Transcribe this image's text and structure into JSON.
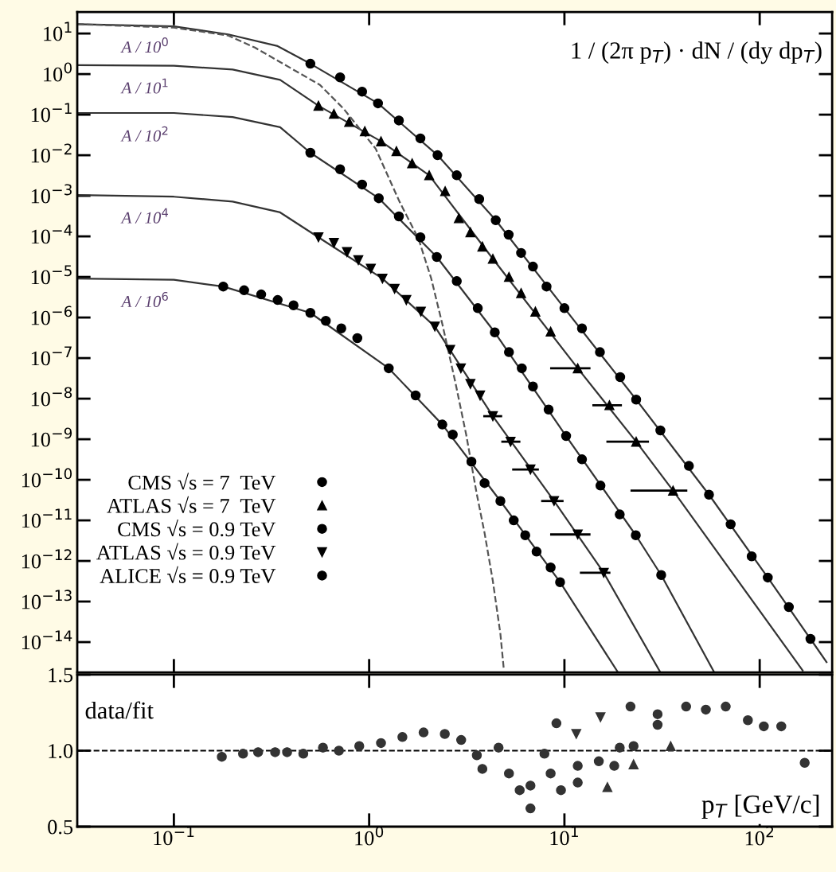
{
  "chart_data": [
    {
      "type": "scatter",
      "log": "xy",
      "xlim": [
        0.032,
        235
      ],
      "ylim": [
        1.8e-15,
        34
      ],
      "xticks": [
        {
          "value": 0.1,
          "label": null
        },
        {
          "value": 1,
          "label": null
        },
        {
          "value": 10,
          "label": null
        },
        {
          "value": 100,
          "label": null
        }
      ],
      "yticks": [
        {
          "value": 10,
          "label": "10$^{1}$"
        },
        {
          "value": 1,
          "label": "10$^{0}$"
        },
        {
          "value": 0.1,
          "label": "10$^{−1}$"
        },
        {
          "value": 0.01,
          "label": "10$^{−2}$"
        },
        {
          "value": 0.001,
          "label": "10$^{−3}$"
        },
        {
          "value": 0.0001,
          "label": "10$^{−4}$"
        },
        {
          "value": 1e-05,
          "label": "10$^{−5}$"
        },
        {
          "value": 1e-06,
          "label": "10$^{−6}$"
        },
        {
          "value": 1e-07,
          "label": "10$^{−7}$"
        },
        {
          "value": 1e-08,
          "label": "10$^{−8}$"
        },
        {
          "value": 1e-09,
          "label": "10$^{−9}$"
        },
        {
          "value": 1e-10,
          "label": "10$^{−10}$"
        },
        {
          "value": 1e-11,
          "label": "10$^{−11}$"
        },
        {
          "value": 1e-12,
          "label": "10$^{−12}$"
        },
        {
          "value": 1e-13,
          "label": "10$^{−13}$"
        },
        {
          "value": 1e-14,
          "label": "10$^{−14}$"
        }
      ],
      "tick_labels": "y",
      "grid": false,
      "legend": "bottom left",
      "annotations": [
        "A / 10$^{0}$",
        "A / 10$^{1}$",
        "A / 10$^{2}$",
        "A / 10$^{4}$",
        "A / 10$^{6}$",
        "1 / (2π p$_{T}$) · dN / (dy dp$_{T}$)"
      ],
      "series": [
        {
          "name": "CMS √s = 7  TeV",
          "marker": "circle",
          "color": "#000000",
          "x": [
            0.5,
            0.71,
            0.92,
            1.11,
            1.42,
            1.83,
            2.24,
            2.81,
            3.66,
            4.45,
            5.18,
            6.0,
            6.9,
            8.1,
            10,
            12.3,
            15.2,
            19.3,
            23.3,
            31,
            43.4,
            55,
            71,
            91,
            110,
            141,
            182
          ],
          "values": [
            1.8,
            0.83,
            0.37,
            0.19,
            0.072,
            0.026,
            0.01,
            0.0032,
            0.00083,
            0.00025,
            0.00011,
            3.9e-05,
            1.8e-05,
            5.8e-06,
            1.7e-06,
            5.4e-07,
            1.4e-07,
            3.4e-08,
            9.5e-09,
            1.65e-09,
            2.2e-10,
            4.3e-11,
            8e-12,
            1.3e-12,
            3.9e-13,
            7.3e-14,
            1.2e-14
          ]
        },
        {
          "name": "ATLAS √s = 7  TeV",
          "marker": "triangle",
          "color": "#000000",
          "x": [
            0.55,
            0.66,
            0.79,
            0.95,
            1.15,
            1.38,
            1.66,
            2.03,
            2.45,
            2.88,
            3.3,
            3.8,
            4.3,
            5.2,
            6.0,
            7.1,
            8.5,
            11.7,
            17,
            23.3,
            36
          ],
          "values": [
            0.166,
            0.105,
            0.066,
            0.039,
            0.022,
            0.0126,
            0.0063,
            0.0032,
            0.0013,
            0.00028,
            0.000126,
            5.6e-05,
            2.8e-05,
            1e-05,
            4e-06,
            1.4e-06,
            4.5e-07,
            5.6e-08,
            6.9e-09,
            8.7e-10,
            5.4e-11
          ],
          "xerrors": [
            null,
            null,
            null,
            null,
            null,
            null,
            null,
            null,
            null,
            null,
            null,
            null,
            null,
            null,
            null,
            null,
            null,
            [
              8.45,
              13.6
            ],
            [
              13.9,
              19.7
            ],
            [
              16.4,
              27.1
            ],
            [
              21.8,
              42.6
            ]
          ]
        },
        {
          "name": "CMS √s = 0.9 TeV",
          "marker": "circle",
          "color": "#000000",
          "x": [
            0.5,
            0.71,
            0.92,
            1.12,
            1.42,
            1.83,
            2.22,
            2.81,
            3.6,
            4.4,
            5.2,
            6.05,
            6.9,
            8.3,
            10.2,
            12.3,
            15.3,
            19.2,
            23.2,
            31.3
          ],
          "values": [
            0.0115,
            0.0045,
            0.0019,
            0.00087,
            0.00031,
            9.5e-05,
            3.1e-05,
            7.9e-06,
            1.7e-06,
            4.3e-07,
            1.4e-07,
            5.6e-08,
            2e-08,
            5.4e-09,
            1.2e-09,
            3.2e-10,
            7.2e-11,
            1.4e-11,
            4.3e-12,
            4.5e-13
          ]
        },
        {
          "name": "ATLAS √s = 0.9 TeV",
          "marker": "triangle_down",
          "color": "#000000",
          "x": [
            0.55,
            0.66,
            0.77,
            0.88,
            1.02,
            1.17,
            1.35,
            1.55,
            1.84,
            2.17,
            2.6,
            2.95,
            3.3,
            3.7,
            4.3,
            5.3,
            6.7,
            8.85,
            11.7,
            15.9
          ],
          "values": [
            9.5e-05,
            6.9e-05,
            4.1e-05,
            2.6e-05,
            1.6e-05,
            9.1e-06,
            5.1e-06,
            2.7e-06,
            1.4e-06,
            6e-07,
            1.6e-07,
            5.6e-08,
            2.3e-08,
            1.2e-08,
            3.7e-09,
            8.7e-10,
            1.8e-10,
            3e-11,
            4.5e-12,
            5.1e-13
          ],
          "xerrors": [
            null,
            null,
            null,
            null,
            null,
            null,
            null,
            null,
            null,
            null,
            null,
            null,
            null,
            null,
            [
              3.84,
              4.8
            ],
            [
              4.75,
              5.95
            ],
            [
              5.4,
              7.4
            ],
            [
              7.6,
              9.9
            ],
            [
              8.45,
              13.6
            ],
            [
              12.0,
              17.2
            ]
          ]
        },
        {
          "name": "ALICE √s = 0.9 TeV",
          "marker": "circle",
          "color": "#000000",
          "x": [
            0.179,
            0.229,
            0.28,
            0.34,
            0.41,
            0.5,
            0.6,
            0.72,
            0.87,
            1.26,
            1.73,
            2.37,
            2.68,
            3.34,
            3.9,
            4.7,
            5.5,
            6.3,
            7.2,
            8.5,
            9.5
          ],
          "values": [
            5.8e-06,
            4.7e-06,
            3.7e-06,
            2.7e-06,
            2e-06,
            1.3e-06,
            8.3e-07,
            5.4e-07,
            3.1e-07,
            5.6e-08,
            1.2e-08,
            2.3e-09,
            1.3e-09,
            2.8e-10,
            8.3e-11,
            3e-11,
            1e-11,
            4.3e-12,
            1.7e-12,
            6.9e-13,
            3e-13
          ]
        },
        {
          "type": "line",
          "color": "#333333",
          "x": [
            0.032,
            0.1,
            0.19,
            0.34,
            0.5,
            1.11,
            2.24,
            4.45,
            10,
            23.3,
            55,
            110,
            182,
            220
          ],
          "values": [
            17,
            15,
            9.5,
            4.9,
            1.8,
            0.19,
            0.01,
            0.00025,
            1.7e-06,
            9.5e-09,
            4.3e-11,
            3.9e-13,
            1.2e-14,
            3.2e-15
          ]
        },
        {
          "type": "line",
          "color": "#333333",
          "x": [
            0.032,
            0.1,
            0.2,
            0.35,
            0.55,
            1.15,
            2.03,
            4.3,
            11.7,
            23.3,
            36,
            166
          ],
          "values": [
            1.66,
            1.6,
            1.3,
            0.72,
            0.166,
            0.022,
            0.0032,
            2.8e-05,
            5.6e-08,
            8.7e-10,
            5.4e-11,
            2e-15
          ]
        },
        {
          "type": "line",
          "color": "#333333",
          "x": [
            0.032,
            0.1,
            0.2,
            0.35,
            0.5,
            1.12,
            2.22,
            4.4,
            10.2,
            23.2,
            31.3,
            58.5
          ],
          "values": [
            0.11,
            0.11,
            0.087,
            0.049,
            0.0115,
            0.00087,
            3.1e-05,
            4.3e-07,
            1.2e-09,
            4.3e-12,
            4.5e-13,
            1.8e-15
          ]
        },
        {
          "type": "line",
          "color": "#333333",
          "x": [
            0.032,
            0.1,
            0.2,
            0.35,
            0.55,
            1.17,
            2.17,
            4.3,
            8.85,
            15.9,
            31
          ],
          "values": [
            0.00105,
            0.00095,
            0.00072,
            0.00039,
            9.5e-05,
            9.1e-06,
            6e-07,
            3.7e-09,
            3e-11,
            5.1e-13,
            1.8e-15
          ]
        },
        {
          "type": "line",
          "color": "#333333",
          "x": [
            0.032,
            0.1,
            0.179,
            0.5,
            1.26,
            2.37,
            4.7,
            9.5,
            18.8
          ],
          "values": [
            9.1e-06,
            8.5e-06,
            5.8e-06,
            1.3e-06,
            5.6e-08,
            2.3e-09,
            3e-11,
            3e-13,
            1.8e-15
          ]
        },
        {
          "type": "line",
          "color": "#555555",
          "line_style": "dashed",
          "x": [
            0.032,
            0.1,
            0.19,
            0.26,
            0.56,
            0.74,
            1.08,
            1.43,
            1.79,
            2.08,
            2.37,
            2.76,
            3.14,
            3.55,
            3.9,
            4.3,
            4.7,
            4.9
          ],
          "values": [
            17,
            14,
            8.9,
            4.5,
            0.54,
            0.14,
            0.0145,
            0.00072,
            8.7e-05,
            9.1e-06,
            6.9e-07,
            2.6e-08,
            1.3e-09,
            4.7e-11,
            4.9e-12,
            3.2e-13,
            1.6e-14,
            2e-15
          ]
        }
      ]
    },
    {
      "type": "scatter",
      "log": "x",
      "xlim": [
        0.032,
        235
      ],
      "ylim": [
        0.5,
        1.5
      ],
      "xlabel": "p$_{T}$ [GeV/c]",
      "grid": false,
      "xticks": [
        {
          "value": 0.1,
          "label": "10$^{−1}$"
        },
        {
          "value": 1,
          "label": "10$^{0}$"
        },
        {
          "value": 10,
          "label": "10$^{1}$"
        },
        {
          "value": 100,
          "label": "10$^{2}$"
        }
      ],
      "yticks": [
        {
          "value": 0.5,
          "label": "0.5"
        },
        {
          "value": 1.0,
          "label": "1.0"
        },
        {
          "value": 1.5,
          "label": "1.5"
        }
      ],
      "annotations": [
        "data/fit"
      ],
      "ref_lines": [
        {
          "axis": "y",
          "value": 1.0,
          "line_style": "dashed",
          "color": "#000000"
        }
      ],
      "series": [
        {
          "marker": "circle",
          "color": "#333333",
          "x": [
            0.176,
            0.226,
            0.27,
            0.33,
            0.38,
            0.46,
            0.58,
            0.7,
            0.89,
            1.15,
            1.48,
            1.9,
            2.44,
            2.96,
            3.56,
            3.8,
            4.6,
            5.2,
            5.9,
            6.7,
            6.7,
            7.9,
            8.5,
            9.6,
            9.1,
            11.7,
            11.7,
            15.0,
            18.0,
            19.2,
            21.8,
            22.6,
            30,
            30,
            42,
            53,
            67,
            87,
            105,
            129,
            170
          ],
          "values": [
            0.96,
            0.98,
            0.99,
            0.99,
            0.99,
            0.98,
            1.02,
            1.0,
            1.03,
            1.05,
            1.09,
            1.12,
            1.11,
            1.07,
            0.97,
            0.88,
            1.02,
            0.85,
            0.74,
            0.77,
            0.62,
            0.98,
            0.85,
            0.74,
            1.18,
            0.9,
            0.79,
            0.93,
            0.9,
            1.02,
            1.29,
            1.03,
            1.24,
            1.17,
            1.29,
            1.27,
            1.29,
            1.2,
            1.16,
            1.16,
            0.92
          ]
        },
        {
          "marker": "triangle",
          "color": "#333333",
          "x": [
            16.6,
            22.6,
            35
          ],
          "values": [
            0.76,
            0.91,
            1.03
          ]
        },
        {
          "marker": "triangle_down",
          "color": "#333333",
          "x": [
            11.5,
            15.3
          ],
          "values": [
            1.11,
            1.22
          ]
        }
      ]
    }
  ]
}
